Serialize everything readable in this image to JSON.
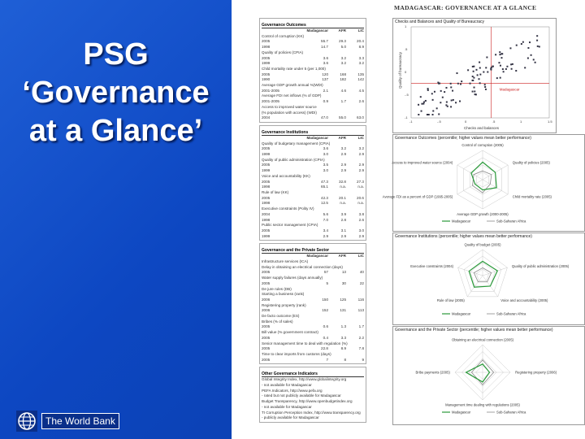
{
  "slide": {
    "title_lines": [
      "PSG",
      "‘Governance",
      "at a Glance’"
    ],
    "logo_text": "The World Bank"
  },
  "doc": {
    "title": "MADAGASCAR: GOVERNANCE AT A GLANCE",
    "left_sections": [
      {
        "heading": "Governance Outcomes",
        "cols": [
          "Madagascar",
          "AFR",
          "LIC"
        ],
        "rows": [
          {
            "label": "Control of corruption (KK)",
            "vals": [
              "",
              "",
              ""
            ],
            "ind": true
          },
          {
            "label": "2005",
            "vals": [
              "55.7",
              "29.3",
              "20.4"
            ]
          },
          {
            "label": "1998",
            "vals": [
              "14.7",
              "5.0",
              "8.9"
            ]
          },
          {
            "label": "Quality of policies (CPIA)",
            "vals": [
              "",
              "",
              ""
            ],
            "ind": true
          },
          {
            "label": "2005",
            "vals": [
              "3.6",
              "3.2",
              "3.3"
            ]
          },
          {
            "label": "1999",
            "vals": [
              "3.6",
              "3.2",
              "3.2"
            ]
          },
          {
            "label": "Child mortality rate under 5 (per 1,000)",
            "vals": [
              "",
              "",
              ""
            ],
            "ind": true
          },
          {
            "label": "2005",
            "vals": [
              "120",
              "168",
              "135"
            ]
          },
          {
            "label": "1990",
            "vals": [
              "137",
              "182",
              "142"
            ]
          },
          {
            "label": "Average GDP growth annual %(WDI)",
            "vals": [
              "",
              "",
              ""
            ],
            "ind": true
          },
          {
            "label": "2001-2005",
            "vals": [
              "2.1",
              "4.6",
              "4.5"
            ]
          },
          {
            "label": "Average FDI net inflows (% of GDP)",
            "vals": [
              "",
              "",
              ""
            ],
            "ind": true
          },
          {
            "label": "2001-2005",
            "vals": [
              "0.9",
              "1.7",
              "2.6"
            ]
          },
          {
            "label": "Access to improved water source",
            "vals": [
              "",
              "",
              ""
            ],
            "ind": true
          },
          {
            "label": "(% population with access) (WDI)",
            "vals": [
              "",
              "",
              ""
            ],
            "ind": true
          },
          {
            "label": "2004",
            "vals": [
              "47.0",
              "55.0",
              "63.0"
            ]
          }
        ]
      },
      {
        "heading": "Governance Institutions",
        "cols": [
          "Madagascar",
          "AFR",
          "LIC"
        ],
        "rows": [
          {
            "label": "Quality of budgetary management (CPIA)",
            "vals": [
              "",
              "",
              ""
            ],
            "ind": true
          },
          {
            "label": "2005",
            "vals": [
              "3.6",
              "3.2",
              "3.2"
            ]
          },
          {
            "label": "1999",
            "vals": [
              "3.0",
              "2.9",
              "2.9"
            ]
          },
          {
            "label": "Quality of public administration (CPIA)",
            "vals": [
              "",
              "",
              ""
            ],
            "ind": true
          },
          {
            "label": "2005",
            "vals": [
              "3.5",
              "2.9",
              "2.9"
            ]
          },
          {
            "label": "1999",
            "vals": [
              "3.0",
              "2.9",
              "2.9"
            ]
          },
          {
            "label": "Voice and accountability (KK)",
            "vals": [
              "",
              "",
              ""
            ],
            "ind": true
          },
          {
            "label": "2005",
            "vals": [
              "47.3",
              "32.8",
              "27.3"
            ]
          },
          {
            "label": "1998",
            "vals": [
              "65.1",
              "n.a.",
              "n.a."
            ]
          },
          {
            "label": "Rule of law (KK)",
            "vals": [
              "",
              "",
              ""
            ],
            "ind": true
          },
          {
            "label": "2005",
            "vals": [
              "42.3",
              "20.1",
              "20.6"
            ]
          },
          {
            "label": "1998",
            "vals": [
              "12.5",
              "n.a.",
              "n.a."
            ]
          },
          {
            "label": "Executive constraints (Polity IV)",
            "vals": [
              "",
              "",
              ""
            ],
            "ind": true
          },
          {
            "label": "2004",
            "vals": [
              "5.6",
              "3.9",
              "3.8"
            ]
          },
          {
            "label": "1998",
            "vals": [
              "7.0",
              "2.8",
              "2.6"
            ]
          },
          {
            "label": "Public sector management (CPIA)",
            "vals": [
              "",
              "",
              ""
            ],
            "ind": true
          },
          {
            "label": "2005",
            "vals": [
              "3.4",
              "3.1",
              "3.0"
            ]
          },
          {
            "label": "1999",
            "vals": [
              "2.9",
              "2.9",
              "2.9"
            ]
          }
        ]
      },
      {
        "heading": "Governance and the Private Sector",
        "cols": [
          "Madagascar",
          "AFR",
          "LIC"
        ],
        "rows": [
          {
            "label": "Infrastructure services (ICA)",
            "vals": [
              "",
              "",
              ""
            ],
            "ind": true
          },
          {
            "label": "Delay in obtaining an electrical connection (days)",
            "vals": [
              "",
              "",
              ""
            ],
            "ind": true
          },
          {
            "label": "2005",
            "vals": [
              "57",
              "13",
              "40"
            ]
          },
          {
            "label": "Water supply failures (days annually)",
            "vals": [
              "",
              "",
              ""
            ],
            "ind": true
          },
          {
            "label": "2005",
            "vals": [
              "5",
              "30",
              "22"
            ]
          },
          {
            "label": "De jure rules (DB)",
            "vals": [
              "",
              "",
              ""
            ],
            "ind": true
          },
          {
            "label": "Starting a business (rank)",
            "vals": [
              "",
              "",
              ""
            ],
            "ind": true
          },
          {
            "label": "2006",
            "vals": [
              "150",
              "125",
              "116"
            ]
          },
          {
            "label": "Registering property (rank)",
            "vals": [
              "",
              "",
              ""
            ],
            "ind": true
          },
          {
            "label": "2006",
            "vals": [
              "152",
              "131",
              "113"
            ]
          },
          {
            "label": "De facto outcome (ES)",
            "vals": [
              "",
              "",
              ""
            ],
            "ind": true
          },
          {
            "label": "Bribes (% of sales)",
            "vals": [
              "",
              "",
              ""
            ],
            "ind": true
          },
          {
            "label": "2005",
            "vals": [
              "0.6",
              "1.3",
              "1.7"
            ]
          },
          {
            "label": "Bill value (% government contract)",
            "vals": [
              "",
              "",
              ""
            ],
            "ind": true
          },
          {
            "label": "2005",
            "vals": [
              "0.4",
              "3.3",
              "2.2"
            ]
          },
          {
            "label": "Senior management time to deal with regulation (%)",
            "vals": [
              "",
              "",
              ""
            ],
            "ind": true
          },
          {
            "label": "2005",
            "vals": [
              "22.8",
              "8.9",
              "7.8"
            ]
          },
          {
            "label": "Time to clear imports from customs (days)",
            "vals": [
              "",
              "",
              ""
            ],
            "ind": true
          },
          {
            "label": "2005",
            "vals": [
              "7",
              "8",
              "9"
            ]
          }
        ]
      }
    ],
    "other_indicators": {
      "heading": "Other Governance Indicators",
      "lines": [
        "Global Integrity Index, http://www.globalintegrity.org",
        "- not available for Madagascar",
        "PEFA Indicators, http://www.pefa.org",
        "- rated but not publicly available for Madagascar",
        "Budget Transparency, http://www.openbudgetindex.org",
        "- not available for Madagascar",
        "TI Corruption Perception Index, http://www.transparency.org",
        "- publicly available for Madagascar"
      ]
    },
    "scatter": {
      "title": "Checks and Balances and Quality of Bureaucracy",
      "ylabel": "Quality of bureaucracy",
      "xlabel": "Checks and balances",
      "highlight_label": "Madagascar",
      "xticks": [
        "-1",
        "-.5",
        "0",
        ".5",
        "1",
        "1.5"
      ],
      "yticks": [
        "-1",
        "-.5",
        "0",
        ".5",
        "1"
      ]
    },
    "radar1": {
      "title": "Governance Outcomes (percentile; higher values mean better performance)",
      "axes": [
        "Control of corruption (2005)",
        "Quality of policies (2005)",
        "Child mortality rate (2005)",
        "Average GDP growth (2000-2005)",
        "Average FDI as a percent of GDP (1995-2005)",
        "Access to improved water source (2004)"
      ],
      "legend": [
        "Madagascar",
        "Sub-Saharan Africa"
      ]
    },
    "radar2": {
      "title": "Governance Institutions (percentile; higher values mean better performance)",
      "axes": [
        "Quality of budget (2005)",
        "Quality of public administration (2005)",
        "Voice and accountability (2005)",
        "Rule of law (2005)",
        "Executive constraints (2004)"
      ],
      "legend": [
        "Madagascar",
        "Sub-Saharan Africa"
      ]
    },
    "radar3": {
      "title": "Governance and the Private Sector (percentile; higher values mean better performance)",
      "axes": [
        "Obtaining an electrical connection (2005)",
        "Registering property (2006)",
        "Management time dealing with regulations (2005)",
        "Bribe payments (2005)"
      ],
      "legend": [
        "Madagascar",
        "Sub-Saharan Africa"
      ]
    },
    "colors": {
      "madagascar": "#2a9a3a",
      "africa": "#8a8a8a",
      "highlight": "#cc2222"
    }
  }
}
